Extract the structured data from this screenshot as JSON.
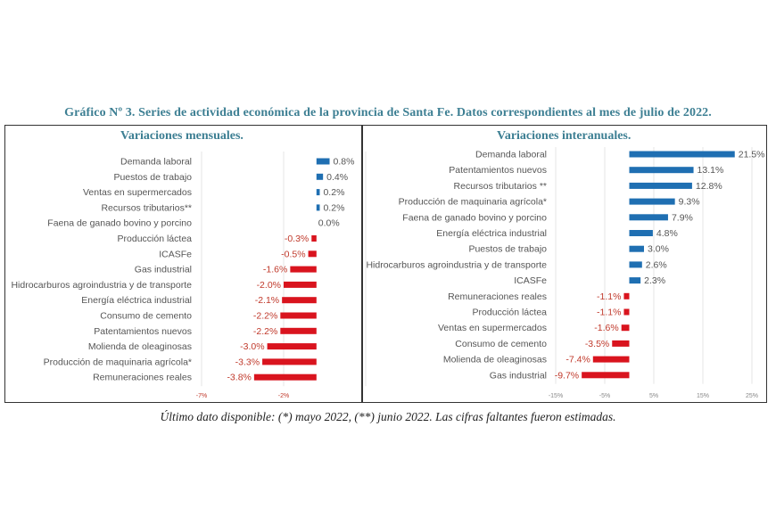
{
  "title": "Gráfico Nº 3. Series de actividad económica de la provincia de Santa Fe. Datos correspondientes al mes de julio de 2022.",
  "footnote": "Último dato disponible: (*) mayo 2022, (**) junio 2022. Las cifras faltantes fueron estimadas.",
  "colors": {
    "positive": "#1f6fb2",
    "negative": "#d9141e",
    "title": "#3d7f93"
  },
  "chart_data": [
    {
      "type": "bar",
      "orientation": "horizontal",
      "title": "Variaciones mensuales.",
      "categories": [
        "Demanda laboral",
        "Puestos de trabajo",
        "Ventas en supermercados",
        "Recursos tributarios**",
        "Faena de ganado bovino y porcino",
        "Producción láctea",
        "ICASFe",
        "Gas industrial",
        "Hidrocarburos agroindustria y de transporte",
        "Energía eléctrica industrial",
        "Consumo de cemento",
        "Patentamientos nuevos",
        "Molienda de oleaginosas",
        "Producción de maquinaria agrícola*",
        "Remuneraciones reales"
      ],
      "values": [
        0.8,
        0.4,
        0.2,
        0.2,
        0.0,
        -0.3,
        -0.5,
        -1.6,
        -2.0,
        -2.1,
        -2.2,
        -2.2,
        -3.0,
        -3.3,
        -3.8
      ],
      "value_labels": [
        "0.8%",
        "0.4%",
        "0.2%",
        "0.2%",
        "0.0%",
        "-0.3%",
        "-0.5%",
        "-1.6%",
        "-2.0%",
        "-2.1%",
        "-2.2%",
        "-2.2%",
        "-3.0%",
        "-3.3%",
        "-3.8%"
      ],
      "xlim": [
        -7,
        3
      ],
      "xticks": [
        -7,
        -2,
        3
      ],
      "xtick_labels": [
        "-7%",
        "-2%",
        ""
      ],
      "xlabel": "",
      "ylabel": "",
      "grid": true
    },
    {
      "type": "bar",
      "orientation": "horizontal",
      "title": "Variaciones interanuales.",
      "categories": [
        "Demanda laboral",
        "Patentamientos nuevos",
        "Recursos tributarios **",
        "Producción de maquinaria agrícola*",
        "Faena de ganado bovino y porcino",
        "Energía eléctrica industrial",
        "Puestos de trabajo",
        "Hidrocarburos agroindustria y de transporte",
        "ICASFe",
        "Remuneraciones reales",
        "Producción láctea",
        "Ventas en supermercados",
        "Consumo de cemento",
        "Molienda de oleaginosas",
        "Gas industrial"
      ],
      "values": [
        21.5,
        13.1,
        12.8,
        9.3,
        7.9,
        4.8,
        3.0,
        2.6,
        2.3,
        -1.1,
        -1.1,
        -1.6,
        -3.5,
        -7.4,
        -9.7
      ],
      "value_labels": [
        "21.5%",
        "13.1%",
        "12.8%",
        "9.3%",
        "7.9%",
        "4.8%",
        "3.0%",
        "2.6%",
        "2.3%",
        "-1.1%",
        "-1.1%",
        "-1.6%",
        "-3.5%",
        "-7.4%",
        "-9.7%"
      ],
      "xlim": [
        -15,
        25
      ],
      "xticks": [
        -15,
        -5,
        5,
        15,
        25
      ],
      "xtick_labels": [
        "-15%",
        "-5%",
        "5%",
        "15%",
        "25%"
      ],
      "xlabel": "",
      "ylabel": "",
      "grid": true
    }
  ]
}
